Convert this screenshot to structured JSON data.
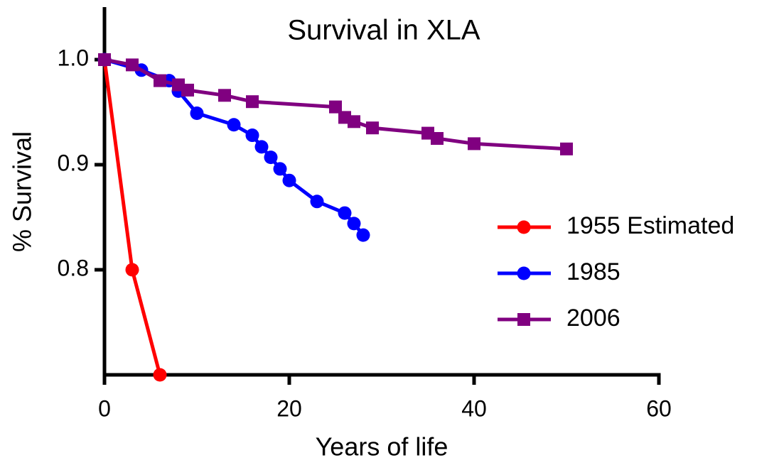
{
  "chart_data": {
    "type": "line",
    "title": "Survival in XLA",
    "xlabel": "Years of life",
    "ylabel": "% Survival",
    "xlim": [
      0,
      60
    ],
    "xticks": [
      0,
      20,
      40,
      60
    ],
    "ylim": [
      0.7,
      1.05
    ],
    "yticks": [
      0.8,
      0.9,
      {
        "value": 1,
        "label": "1.0"
      }
    ],
    "legend": "right",
    "series": [
      {
        "name": "1955 Estimated",
        "color": "#ff0000",
        "marker": "circle",
        "x": [
          0,
          3,
          6
        ],
        "values": [
          1.0,
          0.8,
          0.7
        ]
      },
      {
        "name": "1985",
        "color": "#0000ff",
        "marker": "circle",
        "x": [
          0,
          4,
          7,
          8,
          10,
          14,
          16,
          17,
          18,
          19,
          20,
          23,
          26,
          27,
          28
        ],
        "values": [
          1.0,
          0.99,
          0.98,
          0.97,
          0.949,
          0.938,
          0.928,
          0.917,
          0.907,
          0.896,
          0.885,
          0.865,
          0.854,
          0.844,
          0.833
        ]
      },
      {
        "name": "2006",
        "color": "#800080",
        "marker": "square",
        "x": [
          0,
          3,
          6,
          8,
          9,
          13,
          16,
          25,
          26,
          27,
          29,
          35,
          36,
          40,
          50
        ],
        "values": [
          1.0,
          0.995,
          0.98,
          0.976,
          0.971,
          0.966,
          0.96,
          0.955,
          0.945,
          0.941,
          0.935,
          0.93,
          0.925,
          0.92,
          0.915
        ]
      }
    ]
  }
}
